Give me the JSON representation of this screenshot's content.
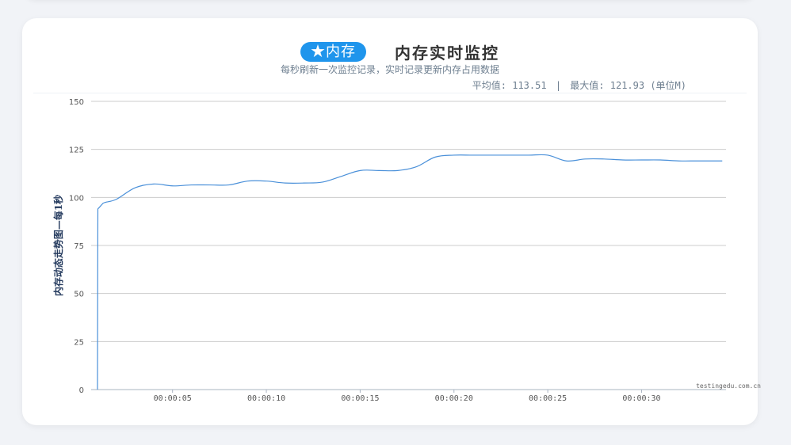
{
  "header": {
    "badge": "★内存",
    "title": "内存实时监控",
    "subtitle": "每秒刷新一次监控记录，实时记录更新内存占用数据",
    "avg_label": "平均值: 113.51",
    "separator": "|",
    "max_label": "最大值: 121.93 (单位M)"
  },
  "watermark": "testingedu.com.cn",
  "colors": {
    "accent": "#1f95ec",
    "line": "#4a90d9",
    "grid": "#cccccc"
  },
  "chart_data": {
    "type": "line",
    "ylabel": "内存动态走势图—每1秒",
    "ylim": [
      0,
      150
    ],
    "yticks": [
      0,
      25,
      50,
      75,
      100,
      125,
      150
    ],
    "xlim": [
      0,
      33.5
    ],
    "xticks": [
      {
        "t": 4,
        "label": "00:00:05"
      },
      {
        "t": 9,
        "label": "00:00:10"
      },
      {
        "t": 14,
        "label": "00:00:15"
      },
      {
        "t": 19,
        "label": "00:00:20"
      },
      {
        "t": 24,
        "label": "00:00:25"
      },
      {
        "t": 29,
        "label": "00:00:30"
      }
    ],
    "grid": true,
    "series": [
      {
        "values": [
          [
            0,
            0
          ],
          [
            0.02,
            94
          ],
          [
            0.3,
            97
          ],
          [
            1,
            99
          ],
          [
            2,
            105
          ],
          [
            3,
            107
          ],
          [
            4,
            106
          ],
          [
            5,
            106.5
          ],
          [
            6,
            106.5
          ],
          [
            7,
            106.5
          ],
          [
            8,
            108.5
          ],
          [
            9,
            108.5
          ],
          [
            10,
            107.5
          ],
          [
            11,
            107.5
          ],
          [
            12,
            108
          ],
          [
            13,
            111
          ],
          [
            14,
            114
          ],
          [
            15,
            114
          ],
          [
            16,
            114
          ],
          [
            17,
            116
          ],
          [
            18,
            121
          ],
          [
            19,
            122
          ],
          [
            20,
            122
          ],
          [
            21,
            122
          ],
          [
            22,
            122
          ],
          [
            23,
            122
          ],
          [
            24,
            122
          ],
          [
            25,
            119
          ],
          [
            26,
            120
          ],
          [
            27,
            120
          ],
          [
            28,
            119.5
          ],
          [
            29,
            119.5
          ],
          [
            30,
            119.5
          ],
          [
            31,
            119
          ],
          [
            32,
            119
          ],
          [
            33.3,
            119
          ]
        ]
      }
    ]
  }
}
